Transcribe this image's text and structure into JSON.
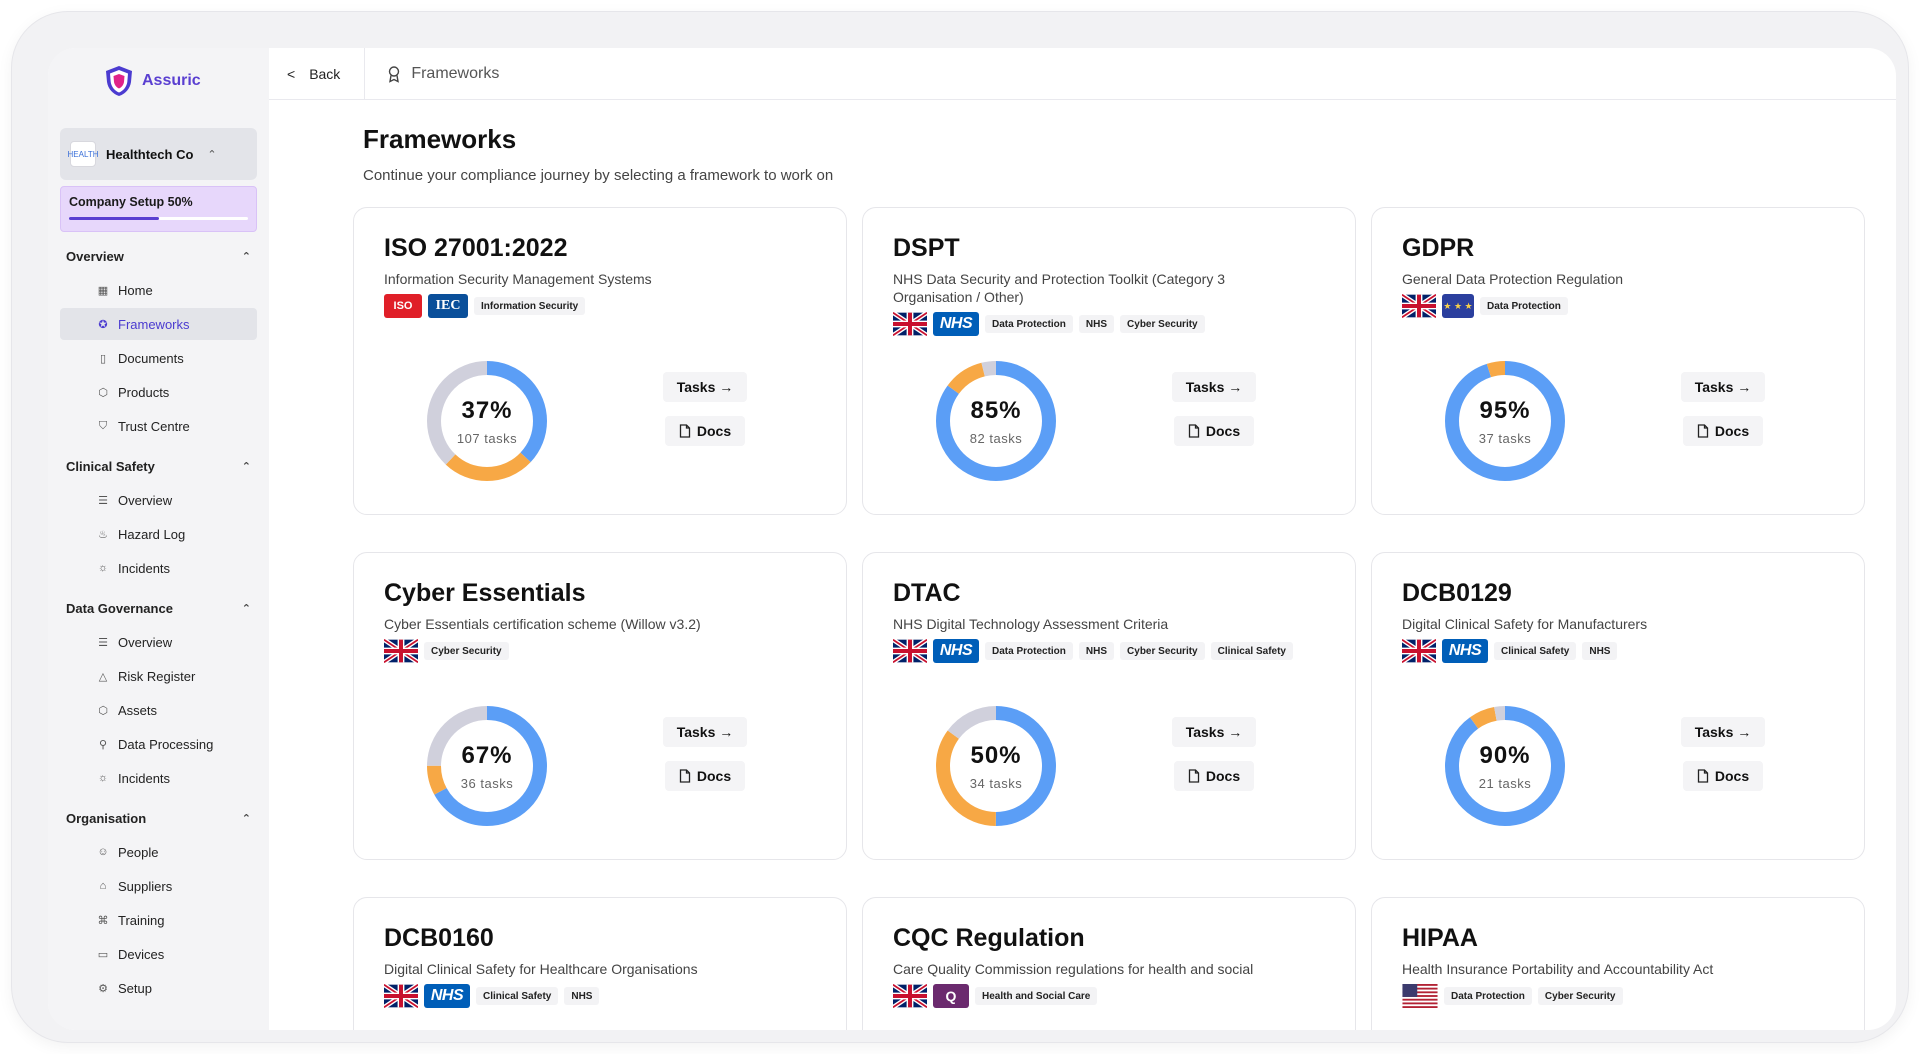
{
  "brand": {
    "name": "Assuric"
  },
  "org": {
    "name": "Healthtech Co",
    "logo_text": "HEALTH"
  },
  "setup": {
    "label": "Company Setup 50%",
    "progress": 0.5
  },
  "sidebar": {
    "sections": [
      {
        "title": "Overview",
        "items": [
          {
            "label": "Home",
            "icon": "grid-icon"
          },
          {
            "label": "Frameworks",
            "icon": "award-icon",
            "active": true
          },
          {
            "label": "Documents",
            "icon": "file-icon"
          },
          {
            "label": "Products",
            "icon": "box-icon"
          },
          {
            "label": "Trust Centre",
            "icon": "shield-icon"
          }
        ]
      },
      {
        "title": "Clinical Safety",
        "items": [
          {
            "label": "Overview",
            "icon": "list-icon"
          },
          {
            "label": "Hazard Log",
            "icon": "flame-icon"
          },
          {
            "label": "Incidents",
            "icon": "siren-icon"
          }
        ]
      },
      {
        "title": "Data Governance",
        "items": [
          {
            "label": "Overview",
            "icon": "list-icon"
          },
          {
            "label": "Risk Register",
            "icon": "warning-icon"
          },
          {
            "label": "Assets",
            "icon": "box-icon"
          },
          {
            "label": "Data Processing",
            "icon": "route-icon"
          },
          {
            "label": "Incidents",
            "icon": "siren-icon"
          }
        ]
      },
      {
        "title": "Organisation",
        "items": [
          {
            "label": "People",
            "icon": "people-icon"
          },
          {
            "label": "Suppliers",
            "icon": "store-icon"
          },
          {
            "label": "Training",
            "icon": "graduation-icon"
          },
          {
            "label": "Devices",
            "icon": "laptop-icon"
          },
          {
            "label": "Setup",
            "icon": "gear-icon"
          }
        ]
      }
    ]
  },
  "topbar": {
    "back_label": "Back",
    "back_glyph": "<",
    "crumb": "Frameworks"
  },
  "page": {
    "title": "Frameworks",
    "subtitle": "Continue your compliance journey by selecting a framework to work on"
  },
  "buttons": {
    "tasks": "Tasks →",
    "docs": "Docs"
  },
  "colors": {
    "done": "#5b9ef6",
    "in_progress": "#f7a845",
    "remaining": "#d0d0dc",
    "brand": "#5a3fd1"
  },
  "frameworks": [
    {
      "title": "ISO 27001:2022",
      "desc": "Information Security Management Systems",
      "badges": [
        {
          "type": "iso",
          "text": "ISO"
        },
        {
          "type": "iec",
          "text": "IEC"
        }
      ],
      "tags": [
        "Information Security"
      ],
      "pct": "37%",
      "tasks": "107 tasks",
      "segments": [
        0.37,
        0.25,
        0.38
      ]
    },
    {
      "title": "DSPT",
      "desc": "NHS Data Security and Protection Toolkit (Category 3 Organisation / Other)",
      "badges": [
        {
          "type": "uk"
        },
        {
          "type": "nhs",
          "text": "NHS"
        }
      ],
      "tags": [
        "Data Protection",
        "NHS",
        "Cyber Security"
      ],
      "pct": "85%",
      "tasks": "82 tasks",
      "segments": [
        0.85,
        0.11,
        0.04
      ]
    },
    {
      "title": "GDPR",
      "desc": "General Data Protection Regulation",
      "badges": [
        {
          "type": "uk"
        },
        {
          "type": "eu",
          "text": "★ ★ ★"
        }
      ],
      "tags": [
        "Data Protection"
      ],
      "pct": "95%",
      "tasks": "37 tasks",
      "segments": [
        0.95,
        0.05,
        0.0
      ]
    },
    {
      "title": "Cyber Essentials",
      "desc": "Cyber Essentials certification scheme (Willow v3.2)",
      "badges": [
        {
          "type": "uk"
        }
      ],
      "tags": [
        "Cyber Security"
      ],
      "pct": "67%",
      "tasks": "36 tasks",
      "segments": [
        0.67,
        0.08,
        0.25
      ]
    },
    {
      "title": "DTAC",
      "desc": "NHS Digital Technology Assessment Criteria",
      "badges": [
        {
          "type": "uk"
        },
        {
          "type": "nhs",
          "text": "NHS"
        }
      ],
      "tags": [
        "Data Protection",
        "NHS",
        "Cyber Security",
        "Clinical Safety"
      ],
      "pct": "50%",
      "tasks": "34 tasks",
      "segments": [
        0.5,
        0.35,
        0.15
      ]
    },
    {
      "title": "DCB0129",
      "desc": "Digital Clinical Safety for Manufacturers",
      "badges": [
        {
          "type": "uk"
        },
        {
          "type": "nhs",
          "text": "NHS"
        }
      ],
      "tags": [
        "Clinical Safety",
        "NHS"
      ],
      "pct": "90%",
      "tasks": "21 tasks",
      "segments": [
        0.9,
        0.07,
        0.03
      ]
    },
    {
      "title": "DCB0160",
      "desc": "Digital Clinical Safety for Healthcare Organisations",
      "badges": [
        {
          "type": "uk"
        },
        {
          "type": "nhs",
          "text": "NHS"
        }
      ],
      "tags": [
        "Clinical Safety",
        "NHS"
      ]
    },
    {
      "title": "CQC Regulation",
      "desc": "Care Quality Commission regulations for health and social",
      "badges": [
        {
          "type": "uk"
        },
        {
          "type": "cqc",
          "text": "Q"
        }
      ],
      "tags": [
        "Health and Social Care"
      ]
    },
    {
      "title": "HIPAA",
      "desc": "Health Insurance Portability and Accountability Act",
      "badges": [
        {
          "type": "us"
        }
      ],
      "tags": [
        "Data Protection",
        "Cyber Security"
      ]
    }
  ]
}
